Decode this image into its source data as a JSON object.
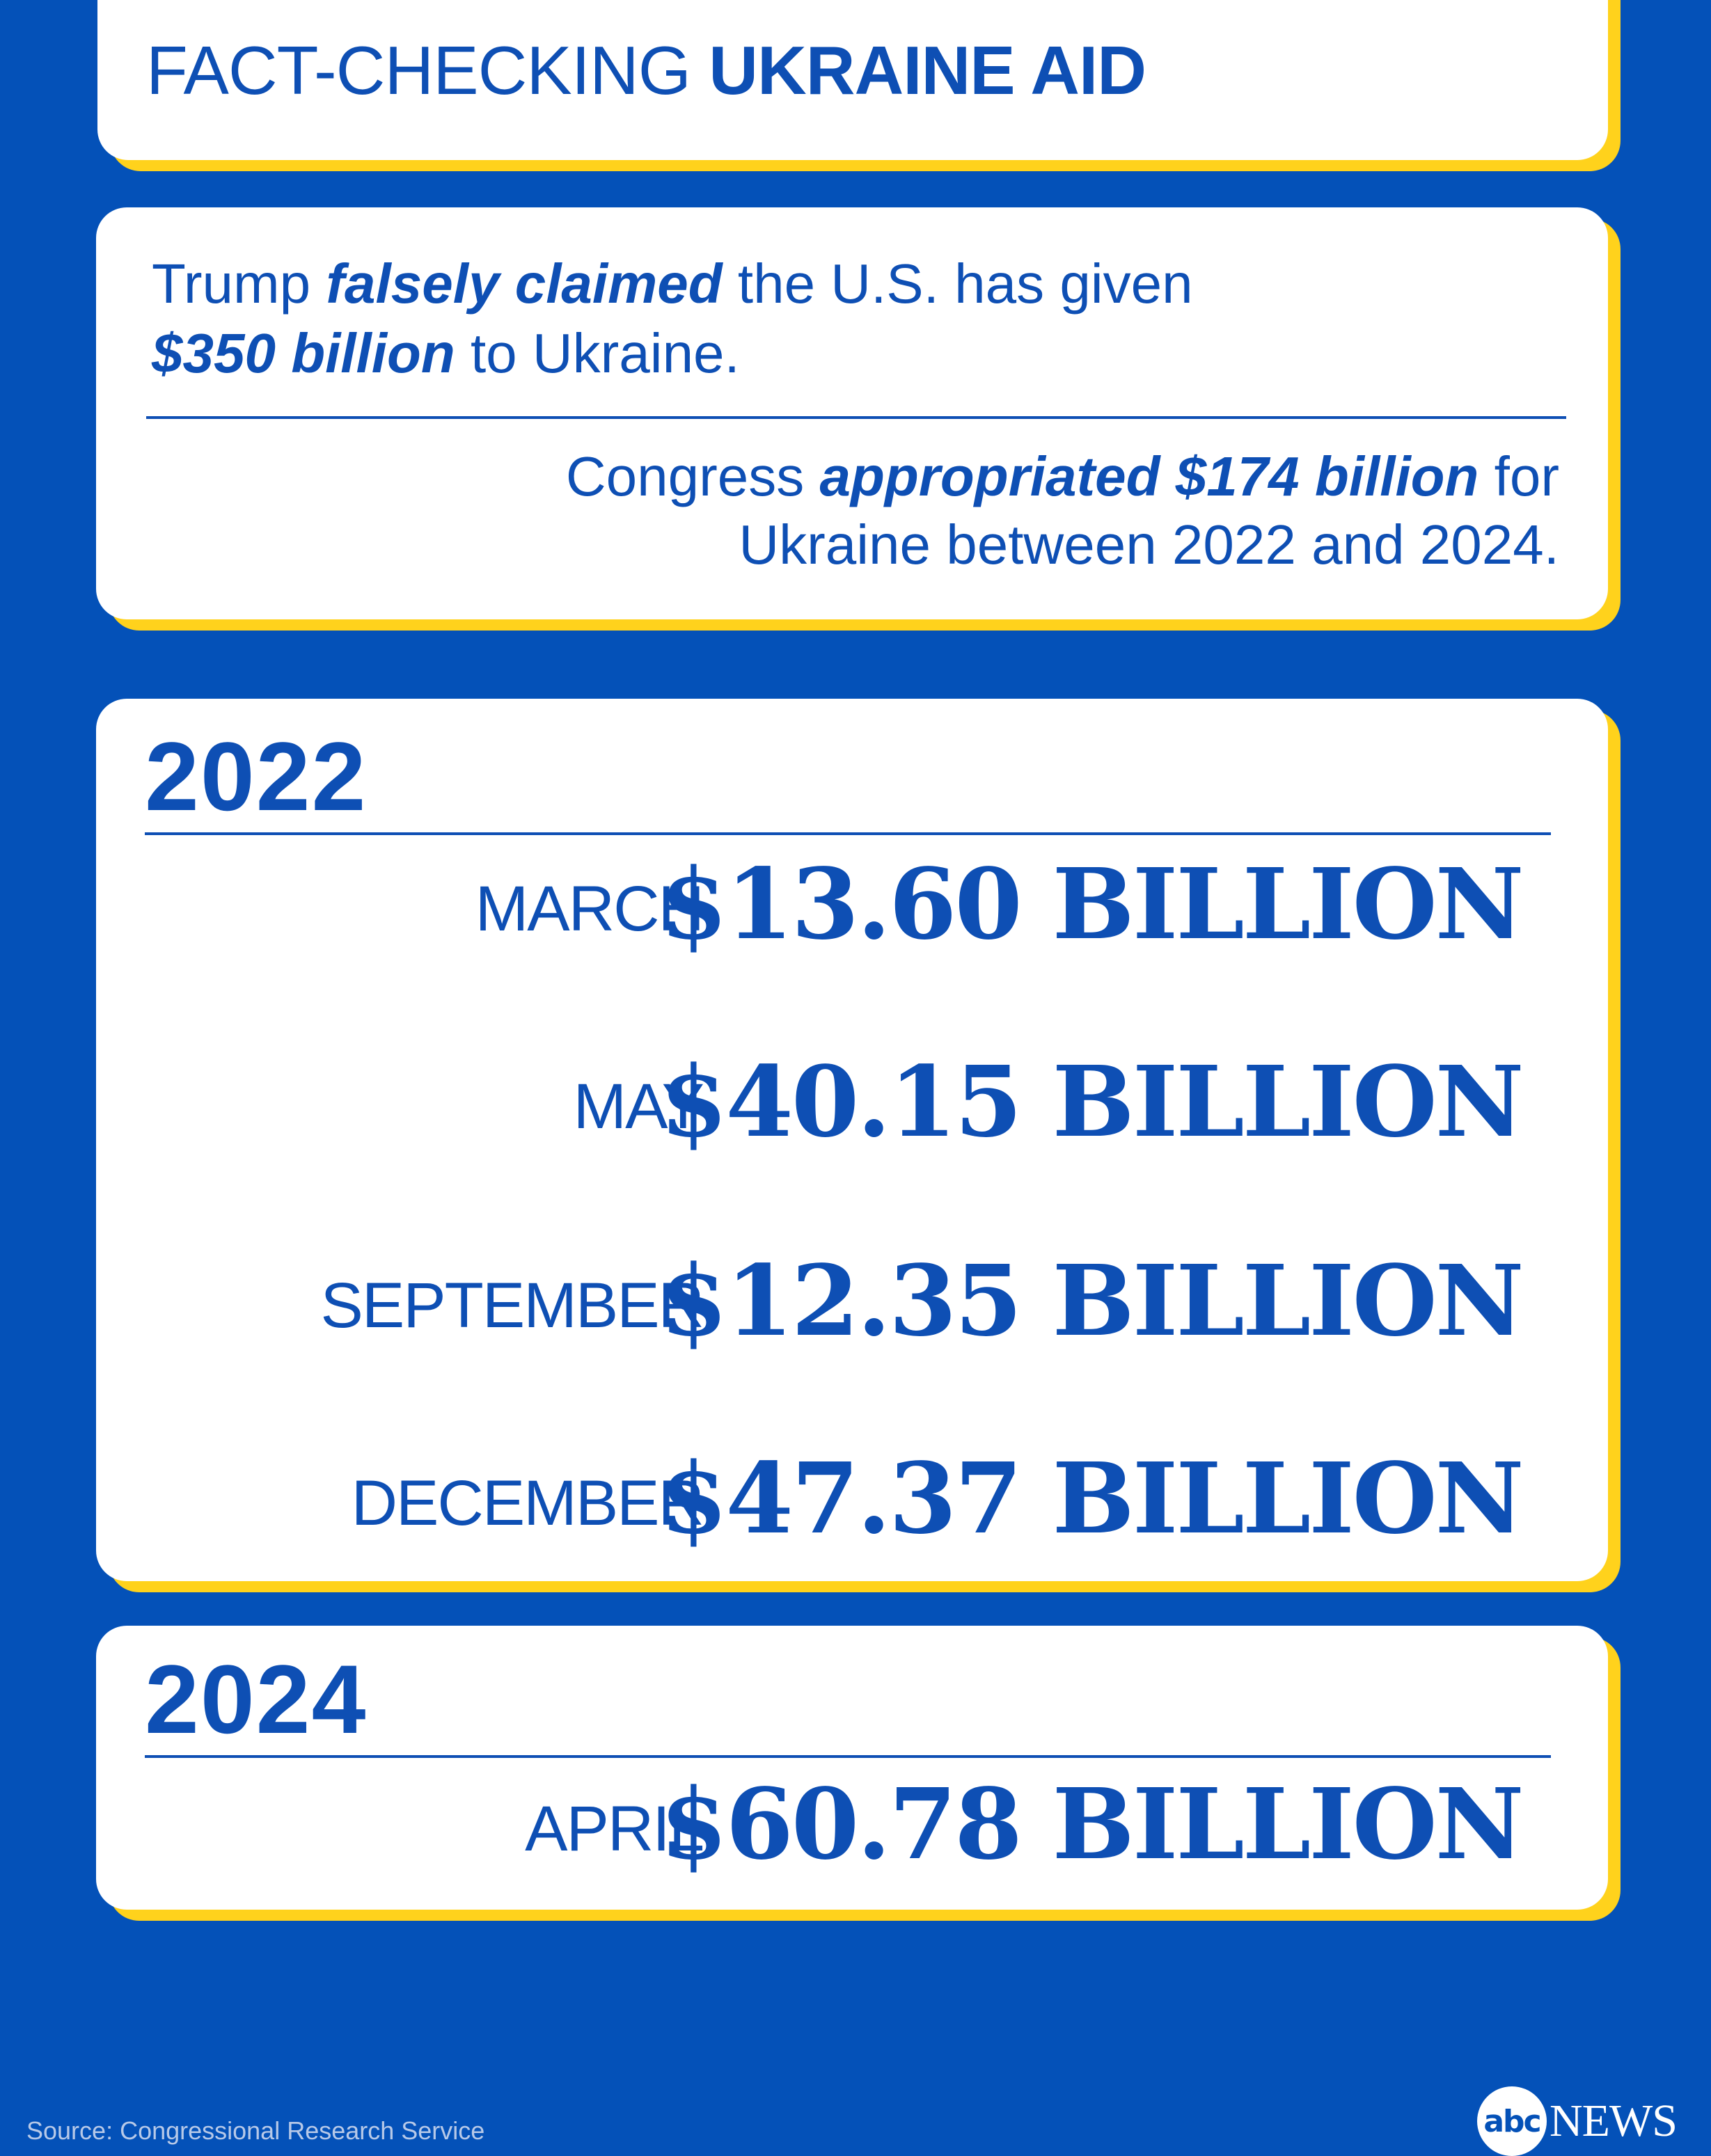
{
  "title": {
    "prefix": "FACT-CHECKING",
    "emphasis": "UKRAINE AID"
  },
  "claim": {
    "line1_a": "Trump",
    "line1_em": "falsely claimed",
    "line1_b": "the U.S. has given",
    "line2_em": "$350 billion",
    "line2_b": "to Ukraine."
  },
  "fact": {
    "line1_a": "Congress",
    "line1_em": "appropriated $174 billion",
    "line1_b": "for",
    "line2": "Ukraine between 2022 and 2024."
  },
  "years": [
    {
      "year": "2022",
      "entries": [
        {
          "month": "MARCH",
          "amount": "$13.60 BILLION"
        },
        {
          "month": "MAY",
          "amount": "$40.15 BILLION"
        },
        {
          "month": "SEPTEMBER",
          "amount": "$12.35 BILLION"
        },
        {
          "month": "DECEMBER",
          "amount": "$47.37 BILLION"
        }
      ]
    },
    {
      "year": "2024",
      "entries": [
        {
          "month": "APRIL",
          "amount": "$60.78 BILLION"
        }
      ]
    }
  ],
  "source": "Source: Congressional Research Service",
  "logo": {
    "abc": "abc",
    "news": "NEWS"
  },
  "colors": {
    "background": "#0451b8",
    "text": "#0e4fb4",
    "accent": "#ffd21c",
    "card": "#ffffff"
  }
}
